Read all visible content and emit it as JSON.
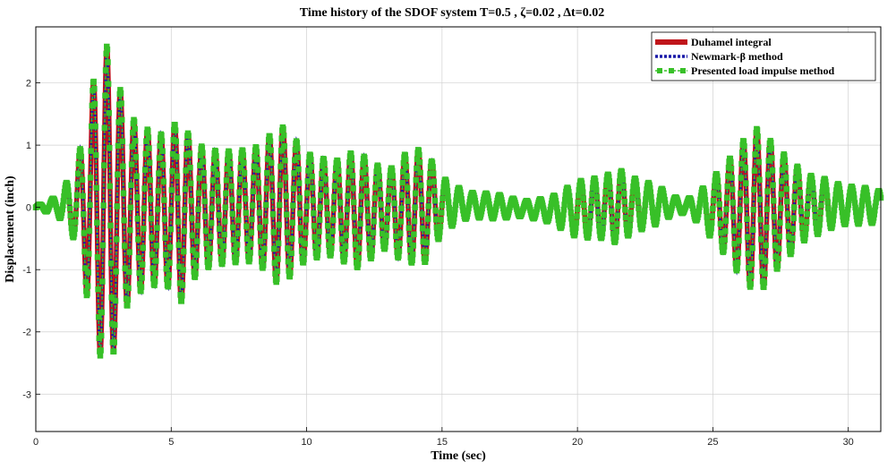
{
  "chart_data": {
    "type": "line",
    "title": "Time history of the SDOF system  T=0.5  ,  ζ=0.02  ,  Δt=0.02",
    "xlabel": "Time (sec)",
    "ylabel": "Displacement (inch)",
    "xlim": [
      0,
      31.2
    ],
    "ylim": [
      -3.6,
      2.9
    ],
    "xticks": [
      0,
      5,
      10,
      15,
      20,
      25,
      30
    ],
    "yticks": [
      -3,
      -2,
      -1,
      0,
      1,
      2
    ],
    "grid": true,
    "legend_position": "top-right",
    "period": 0.5,
    "envelope": {
      "t": [
        0,
        0.8,
        1.5,
        1.9,
        2.2,
        2.5,
        2.8,
        3.1,
        3.5,
        4.0,
        4.5,
        5.0,
        5.3,
        5.7,
        6.3,
        7.0,
        7.5,
        8.0,
        8.5,
        9.0,
        9.5,
        10.0,
        11.0,
        11.8,
        12.5,
        13.0,
        13.5,
        14.0,
        14.3,
        15.0,
        15.5,
        16.0,
        17.0,
        18.0,
        19.0,
        20.0,
        21.0,
        21.5,
        22.0,
        23.0,
        23.5,
        24.0,
        24.5,
        25.0,
        25.5,
        26.0,
        26.5,
        26.8,
        27.2,
        28.0,
        28.5,
        29.0,
        29.5,
        30.0,
        30.5,
        31.2
      ],
      "a": [
        0.02,
        0.15,
        0.6,
        1.5,
        2.15,
        2.6,
        2.5,
        1.9,
        1.45,
        1.3,
        1.2,
        1.25,
        1.55,
        1.15,
        0.95,
        0.9,
        0.9,
        0.9,
        1.05,
        1.3,
        1.1,
        0.85,
        0.75,
        0.95,
        0.75,
        0.6,
        0.85,
        0.9,
        0.95,
        0.45,
        0.3,
        0.2,
        0.2,
        0.12,
        0.2,
        0.45,
        0.5,
        0.6,
        0.45,
        0.3,
        0.15,
        0.1,
        0.25,
        0.5,
        0.75,
        1.05,
        1.3,
        1.3,
        1.05,
        0.7,
        0.5,
        0.45,
        0.35,
        0.3,
        0.3,
        0.25
      ]
    },
    "series": [
      {
        "name": "Duhamel integral",
        "color": "#c0151b",
        "style": "solid"
      },
      {
        "name": "Newmark-β method",
        "color": "#1a1aa8",
        "style": "dotted"
      },
      {
        "name": "Presented load impulse method",
        "color": "#38c028",
        "style": "dashed-square-markers"
      }
    ]
  },
  "colors": {
    "background": "#ffffff",
    "axes": "#000000",
    "grid": "#cccccc"
  }
}
